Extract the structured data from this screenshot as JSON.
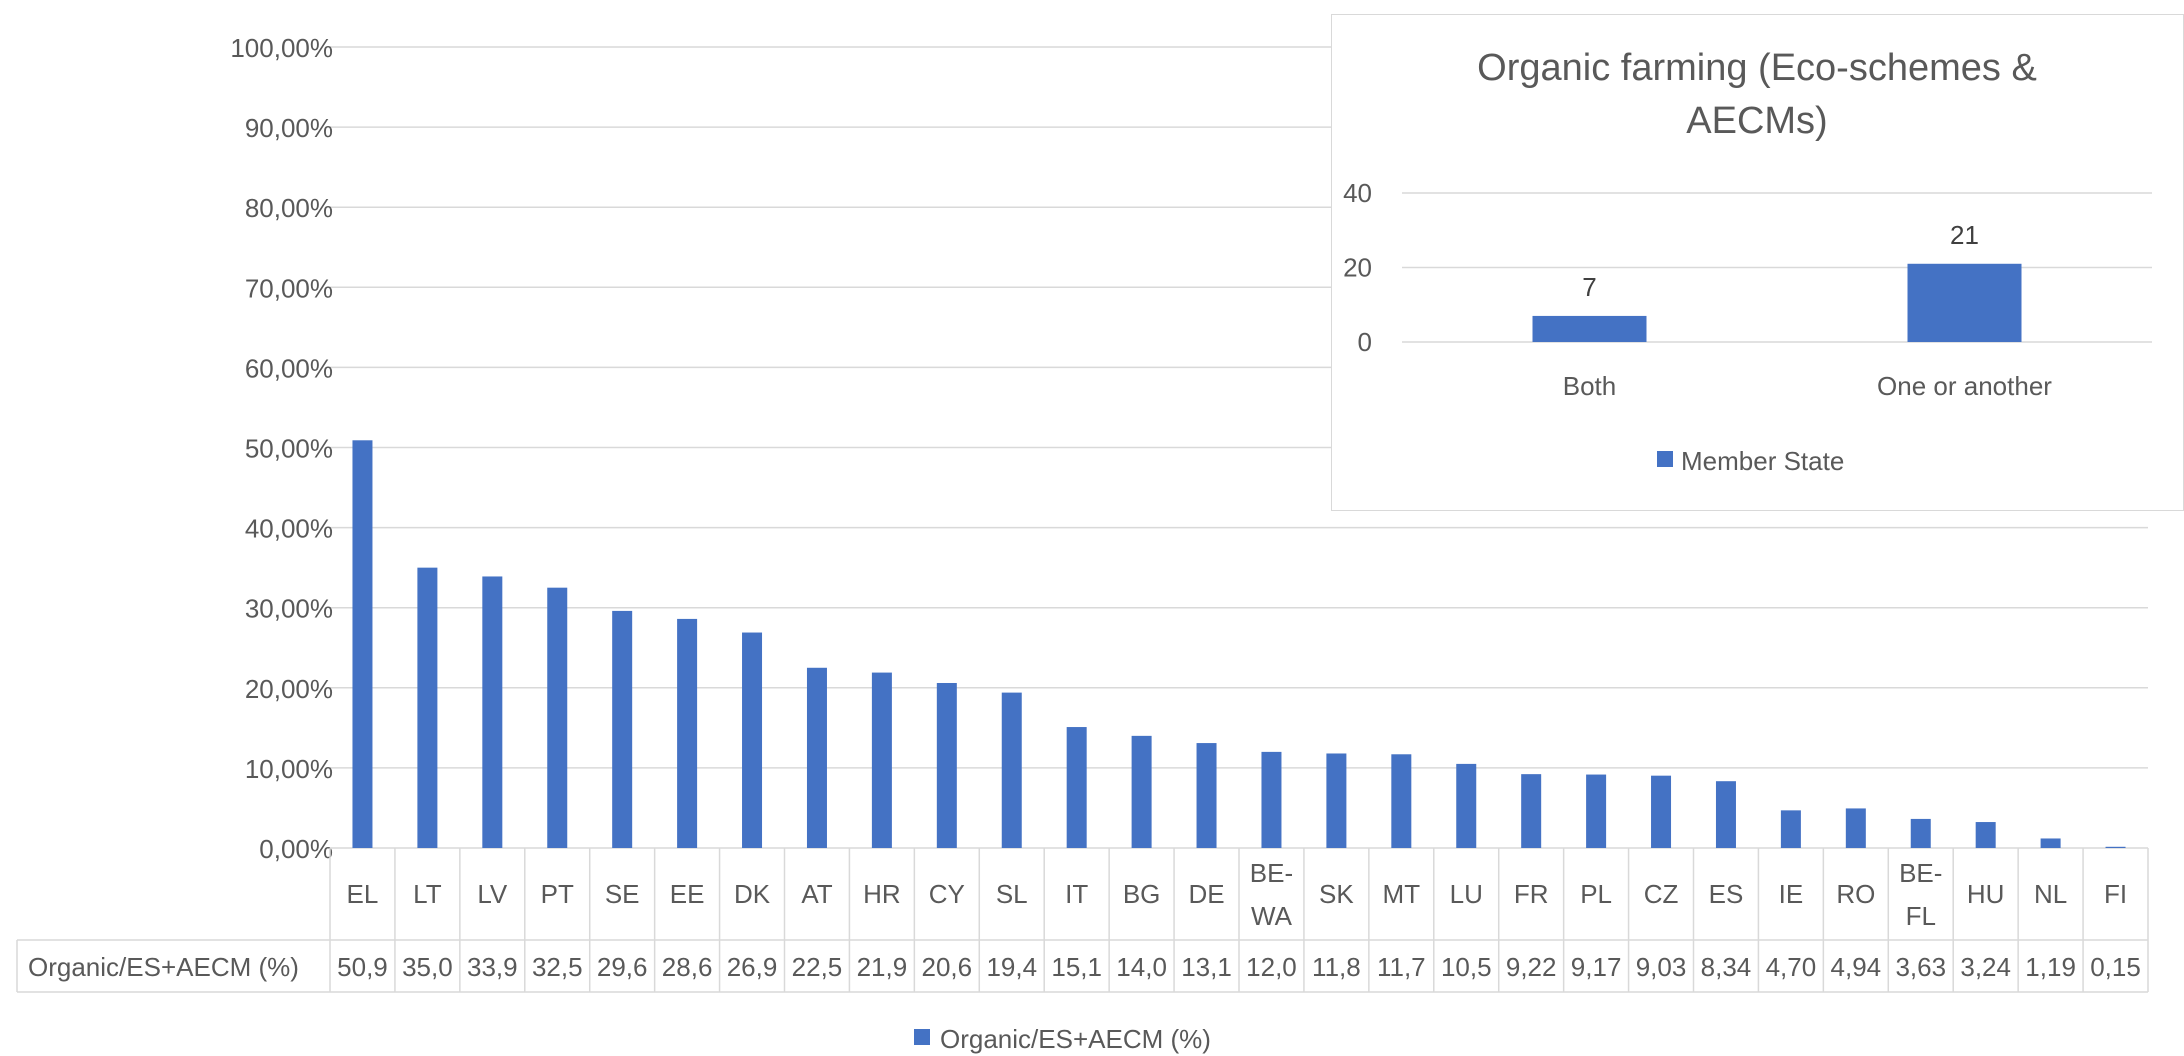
{
  "chart_data": [
    {
      "type": "bar",
      "title": "",
      "xlabel": "",
      "ylabel": "",
      "ylim": [
        0,
        100
      ],
      "yticks": [
        "0,00%",
        "10,00%",
        "20,00%",
        "30,00%",
        "40,00%",
        "50,00%",
        "60,00%",
        "70,00%",
        "80,00%",
        "90,00%",
        "100,00%"
      ],
      "grid": true,
      "legend_position": "bottom",
      "categories": [
        "EL",
        "LT",
        "LV",
        "PT",
        "SE",
        "EE",
        "DK",
        "AT",
        "HR",
        "CY",
        "SL",
        "IT",
        "BG",
        "DE",
        "BE-WA",
        "SK",
        "MT",
        "LU",
        "FR",
        "PL",
        "CZ",
        "ES",
        "IE",
        "RO",
        "BE-FL",
        "HU",
        "NL",
        "FI"
      ],
      "series": [
        {
          "name": "Organic/ES+AECM (%)",
          "color": "#4472C4",
          "values": [
            50.9,
            35.0,
            33.9,
            32.5,
            29.6,
            28.6,
            26.9,
            22.5,
            21.9,
            20.6,
            19.4,
            15.1,
            14.0,
            13.1,
            12.0,
            11.8,
            11.7,
            10.5,
            9.22,
            9.17,
            9.03,
            8.34,
            4.7,
            4.94,
            3.63,
            3.24,
            1.19,
            0.15
          ],
          "table_values": [
            "50,9",
            "35,0",
            "33,9",
            "32,5",
            "29,6",
            "28,6",
            "26,9",
            "22,5",
            "21,9",
            "20,6",
            "19,4",
            "15,1",
            "14,0",
            "13,1",
            "12,0",
            "11,8",
            "11,7",
            "10,5",
            "9,22",
            "9,17",
            "9,03",
            "8,34",
            "4,70",
            "4,94",
            "3,63",
            "3,24",
            "1,19",
            "0,15"
          ]
        }
      ]
    },
    {
      "type": "bar",
      "title": "Organic farming (Eco-schemes & AECMs)",
      "title_lines": [
        "Organic farming (Eco-schemes &",
        "AECMs)"
      ],
      "xlabel": "",
      "ylabel": "",
      "ylim": [
        0,
        40
      ],
      "yticks": [
        "0",
        "20",
        "40"
      ],
      "grid": true,
      "legend_position": "bottom",
      "categories": [
        "Both",
        "One or another"
      ],
      "series": [
        {
          "name": "Member State",
          "color": "#4472C4",
          "values": [
            7,
            21
          ],
          "data_labels": [
            "7",
            "21"
          ]
        }
      ]
    }
  ]
}
